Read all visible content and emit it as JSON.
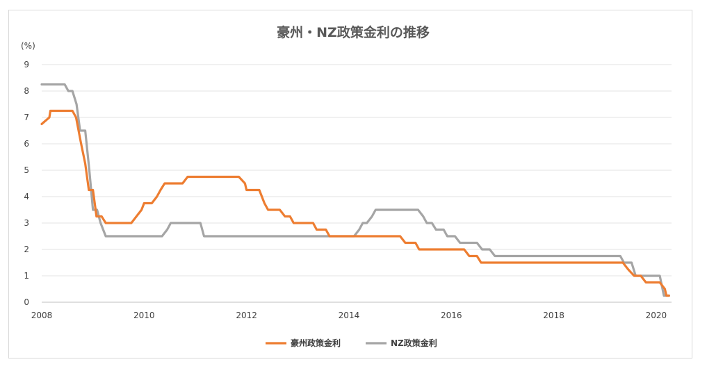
{
  "chart_data": {
    "type": "line",
    "title": "豪州・NZ政策金利の推移",
    "y_unit": "(%)",
    "xlabel": "",
    "ylabel": "",
    "xlim": [
      2008,
      2020.3
    ],
    "ylim": [
      0,
      9
    ],
    "x_ticks": [
      2008,
      2010,
      2012,
      2014,
      2016,
      2018,
      2020
    ],
    "y_ticks": [
      0,
      1,
      2,
      3,
      4,
      5,
      6,
      7,
      8,
      9
    ],
    "grid": "horizontal",
    "legend_position": "bottom",
    "series": [
      {
        "name": "豪州政策金利",
        "color": "#ED7D31",
        "points": [
          [
            2008.0,
            6.75
          ],
          [
            2008.15,
            7.0
          ],
          [
            2008.17,
            7.25
          ],
          [
            2008.6,
            7.25
          ],
          [
            2008.67,
            7.0
          ],
          [
            2008.77,
            6.0
          ],
          [
            2008.85,
            5.25
          ],
          [
            2008.92,
            4.25
          ],
          [
            2009.0,
            4.25
          ],
          [
            2009.07,
            3.25
          ],
          [
            2009.17,
            3.25
          ],
          [
            2009.25,
            3.0
          ],
          [
            2009.75,
            3.0
          ],
          [
            2009.95,
            3.5
          ],
          [
            2010.0,
            3.75
          ],
          [
            2010.15,
            3.75
          ],
          [
            2010.25,
            4.0
          ],
          [
            2010.32,
            4.25
          ],
          [
            2010.4,
            4.5
          ],
          [
            2010.75,
            4.5
          ],
          [
            2010.85,
            4.75
          ],
          [
            2011.85,
            4.75
          ],
          [
            2011.97,
            4.5
          ],
          [
            2012.0,
            4.25
          ],
          [
            2012.25,
            4.25
          ],
          [
            2012.35,
            3.75
          ],
          [
            2012.42,
            3.5
          ],
          [
            2012.65,
            3.5
          ],
          [
            2012.75,
            3.25
          ],
          [
            2012.85,
            3.25
          ],
          [
            2012.92,
            3.0
          ],
          [
            2013.3,
            3.0
          ],
          [
            2013.37,
            2.75
          ],
          [
            2013.55,
            2.75
          ],
          [
            2013.62,
            2.5
          ],
          [
            2015.0,
            2.5
          ],
          [
            2015.1,
            2.25
          ],
          [
            2015.3,
            2.25
          ],
          [
            2015.37,
            2.0
          ],
          [
            2016.25,
            2.0
          ],
          [
            2016.35,
            1.75
          ],
          [
            2016.5,
            1.75
          ],
          [
            2016.58,
            1.5
          ],
          [
            2019.35,
            1.5
          ],
          [
            2019.45,
            1.25
          ],
          [
            2019.57,
            1.0
          ],
          [
            2019.7,
            1.0
          ],
          [
            2019.8,
            0.75
          ],
          [
            2020.07,
            0.75
          ],
          [
            2020.17,
            0.5
          ],
          [
            2020.2,
            0.25
          ],
          [
            2020.25,
            0.25
          ]
        ]
      },
      {
        "name": "NZ政策金利",
        "color": "#A5A5A5",
        "points": [
          [
            2008.0,
            8.25
          ],
          [
            2008.45,
            8.25
          ],
          [
            2008.52,
            8.0
          ],
          [
            2008.6,
            8.0
          ],
          [
            2008.68,
            7.5
          ],
          [
            2008.75,
            6.5
          ],
          [
            2008.85,
            6.5
          ],
          [
            2008.93,
            5.0
          ],
          [
            2009.0,
            3.5
          ],
          [
            2009.08,
            3.5
          ],
          [
            2009.15,
            3.0
          ],
          [
            2009.25,
            2.5
          ],
          [
            2010.35,
            2.5
          ],
          [
            2010.45,
            2.75
          ],
          [
            2010.52,
            3.0
          ],
          [
            2011.1,
            3.0
          ],
          [
            2011.17,
            2.5
          ],
          [
            2014.1,
            2.5
          ],
          [
            2014.2,
            2.75
          ],
          [
            2014.27,
            3.0
          ],
          [
            2014.35,
            3.0
          ],
          [
            2014.45,
            3.25
          ],
          [
            2014.52,
            3.5
          ],
          [
            2015.35,
            3.5
          ],
          [
            2015.45,
            3.25
          ],
          [
            2015.52,
            3.0
          ],
          [
            2015.62,
            3.0
          ],
          [
            2015.7,
            2.75
          ],
          [
            2015.85,
            2.75
          ],
          [
            2015.92,
            2.5
          ],
          [
            2016.07,
            2.5
          ],
          [
            2016.17,
            2.25
          ],
          [
            2016.5,
            2.25
          ],
          [
            2016.6,
            2.0
          ],
          [
            2016.75,
            2.0
          ],
          [
            2016.85,
            1.75
          ],
          [
            2019.3,
            1.75
          ],
          [
            2019.37,
            1.5
          ],
          [
            2019.52,
            1.5
          ],
          [
            2019.6,
            1.0
          ],
          [
            2020.07,
            1.0
          ],
          [
            2020.15,
            0.25
          ],
          [
            2020.25,
            0.25
          ]
        ]
      }
    ]
  }
}
